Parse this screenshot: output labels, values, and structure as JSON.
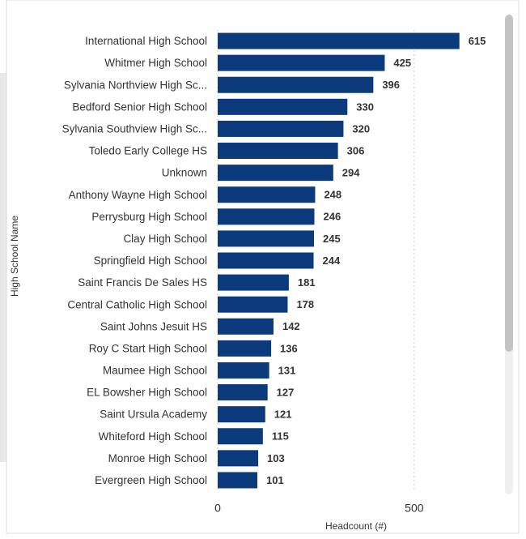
{
  "chart_data": {
    "type": "bar",
    "orientation": "horizontal",
    "y_label": "High School Name",
    "x_label": "Headcount (#)",
    "categories": [
      "International High School",
      "Whitmer High School",
      "Sylvania Northview High Sc...",
      "Bedford Senior High School",
      "Sylvania Southview High Sc...",
      "Toledo Early College HS",
      "Unknown",
      "Anthony Wayne High School",
      "Perrysburg High School",
      "Clay High School",
      "Springfield High School",
      "Saint Francis De Sales HS",
      "Central Catholic High School",
      "Saint Johns Jesuit HS",
      "Roy C Start High School",
      "Maumee High School",
      "EL Bowsher High School",
      "Saint Ursula Academy",
      "Whiteford High School",
      "Monroe High School",
      "Evergreen High School"
    ],
    "values": [
      615,
      425,
      396,
      330,
      320,
      306,
      294,
      248,
      246,
      245,
      244,
      181,
      178,
      142,
      136,
      131,
      127,
      121,
      115,
      103,
      101
    ],
    "color": "#0b3b7c",
    "xlim": [
      0,
      700
    ],
    "xticks": [
      0,
      500
    ],
    "grid": true
  }
}
